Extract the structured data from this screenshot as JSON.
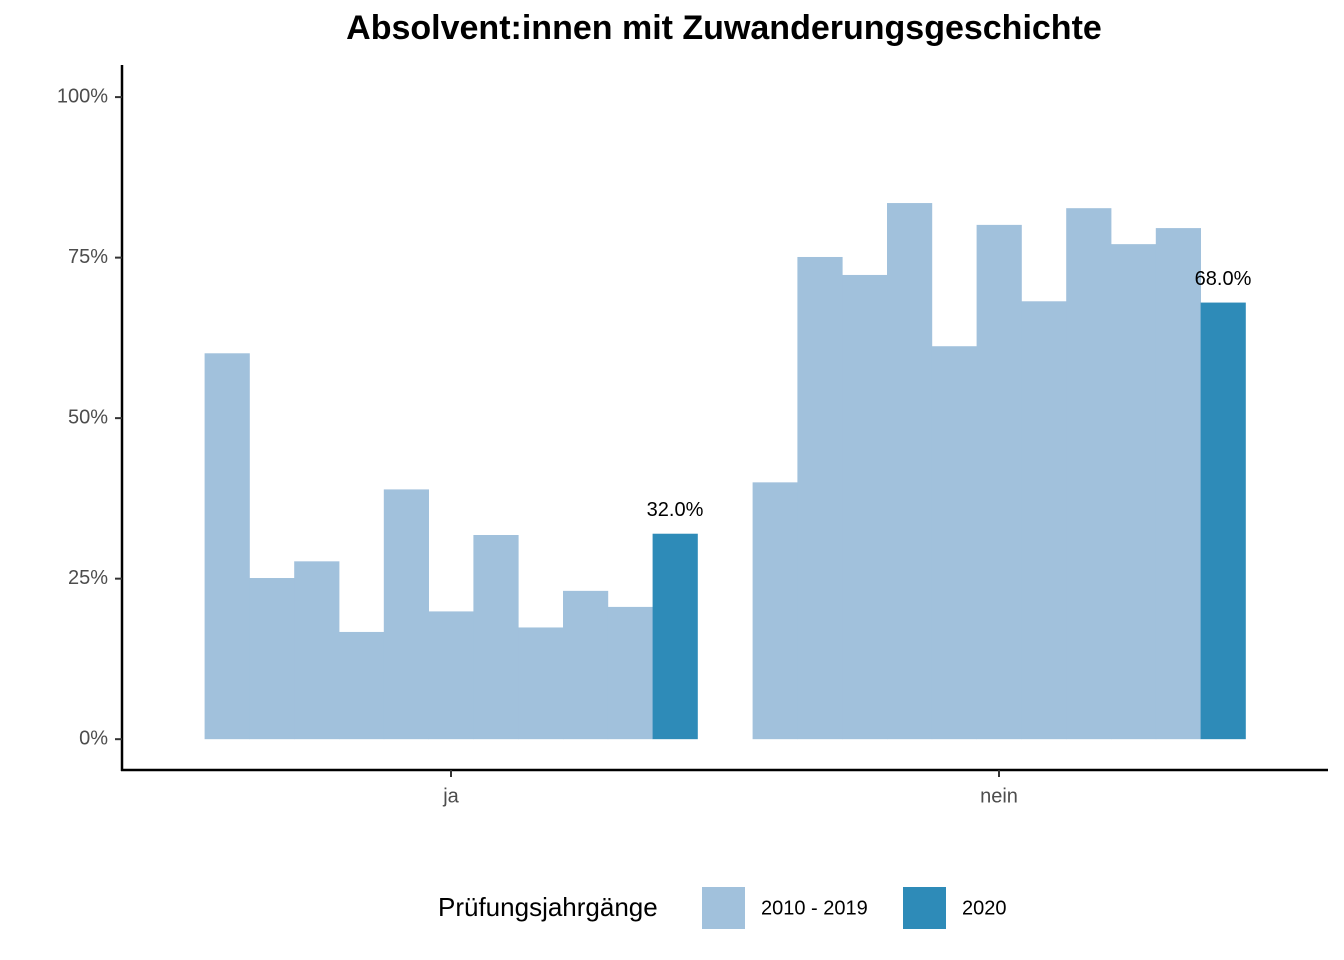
{
  "chart_data": {
    "type": "bar",
    "title": "Absolvent:innen mit Zuwanderungsgeschichte",
    "categories": [
      "ja",
      "nein"
    ],
    "series": [
      {
        "name": "2010 - 2019",
        "color": "#a1c1dc",
        "values": [
          [
            60.1,
            25.1,
            27.7,
            16.7,
            38.9,
            19.9,
            31.8,
            17.4,
            23.1,
            20.6
          ],
          [
            40.0,
            75.1,
            72.3,
            83.5,
            61.2,
            80.1,
            68.2,
            82.7,
            77.1,
            79.6
          ]
        ]
      },
      {
        "name": "2020",
        "color": "#2e8bb8",
        "values": [
          32.0,
          68.0
        ],
        "value_labels": [
          "32.0%",
          "68.0%"
        ]
      }
    ],
    "ylim": [
      -4.8,
      105
    ],
    "yticks": [
      {
        "value": 0,
        "label": "0%"
      },
      {
        "value": 25,
        "label": "25%"
      },
      {
        "value": 50,
        "label": "50%"
      },
      {
        "value": 75,
        "label": "75%"
      },
      {
        "value": 100,
        "label": "100%"
      }
    ],
    "legend_title": "Prüfungsjahrgänge",
    "legend_position": "bottom"
  }
}
